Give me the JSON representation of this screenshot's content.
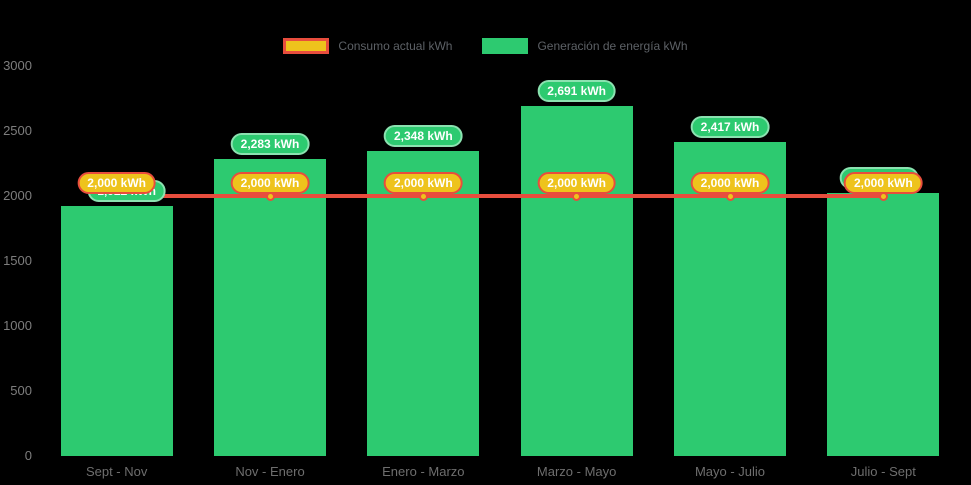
{
  "colors": {
    "background": "#000000",
    "generation_green": "#2dca70",
    "consumption_line_red": "#e84d3d",
    "badge_gold": "#eec31c",
    "badge_border_red": "#e8503c"
  },
  "legend": {
    "items": [
      {
        "label": "Consumo actual kWh"
      },
      {
        "label": "Generación de energía kWh"
      }
    ]
  },
  "chart_data": {
    "type": "bar",
    "categories": [
      "Sept - Nov",
      "Nov - Enero",
      "Enero - Marzo",
      "Marzo - Mayo",
      "Mayo - Julio",
      "Julio - Sept"
    ],
    "series": [
      {
        "name": "Generación de energía kWh",
        "type": "bar",
        "color": "#2dca70",
        "values": [
          1922,
          2283,
          2348,
          2691,
          2417,
          2020
        ],
        "labels": [
          "1,922 kWh",
          "2,283 kWh",
          "2,348 kWh",
          "2,691 kWh",
          "2,417 kWh",
          "2,020 kWh"
        ]
      },
      {
        "name": "Consumo actual kWh",
        "type": "line",
        "color": "#e84d3d",
        "values": [
          2000,
          2000,
          2000,
          2000,
          2000,
          2000
        ],
        "labels": [
          "2,000 kWh",
          "2,000 kWh",
          "2,000 kWh",
          "2,000 kWh",
          "2,000 kWh",
          "2,000 kWh"
        ]
      }
    ],
    "ylim": [
      0,
      3000
    ],
    "yticks": [
      0,
      500,
      1000,
      1500,
      2000,
      2500,
      3000
    ],
    "xlabel": "",
    "ylabel": "",
    "grid": false,
    "legend_position": "top-center"
  }
}
